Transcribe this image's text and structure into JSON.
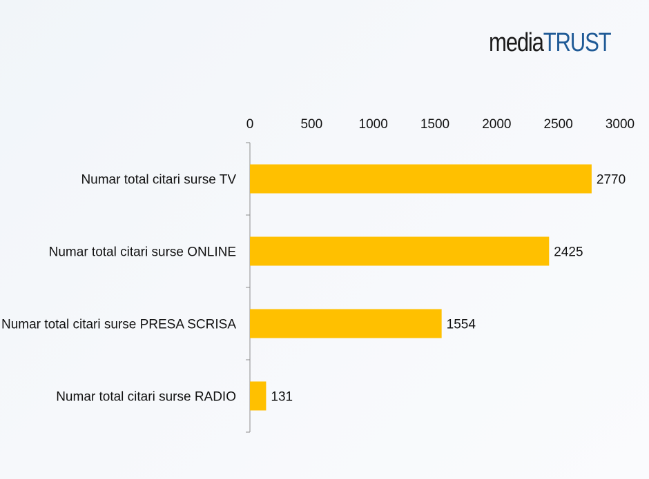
{
  "logo": {
    "prefix": "media",
    "suffix": "TRUST"
  },
  "chart_data": {
    "type": "bar",
    "orientation": "horizontal",
    "categories": [
      "Numar total citari surse TV",
      "Numar total citari surse ONLINE",
      "Numar total citari surse PRESA SCRISA",
      "Numar total citari surse RADIO"
    ],
    "values": [
      2770,
      2425,
      1554,
      131
    ],
    "x_ticks": [
      "0",
      "500",
      "1000",
      "1500",
      "2000",
      "2500",
      "3000"
    ],
    "xlim": [
      0,
      3000
    ],
    "x_axis_position": "top",
    "data_labels": true,
    "grid": false,
    "legend": "none",
    "bar_color": "#FFC000"
  }
}
